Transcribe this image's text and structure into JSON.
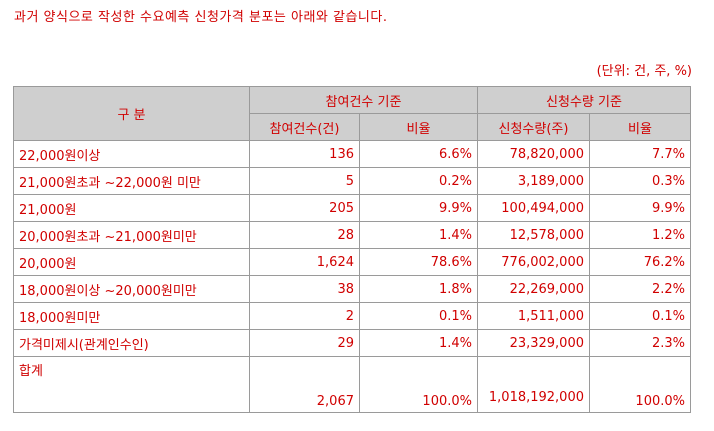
{
  "intro": "과거 양식으로 작성한 수요예측 신청가격 분포는 아래와 같습니다.",
  "unit": "(단위: 건, 주, %)",
  "header": {
    "category": "구 분",
    "group_count": "참여건수 기준",
    "group_qty": "신청수량 기준",
    "count_col": "참여건수(건)",
    "count_ratio": "비율",
    "qty_col": "신청수량(주)",
    "qty_ratio": "비율"
  },
  "rows": [
    {
      "label": "22,000원이상",
      "count": "136",
      "count_ratio": "6.6%",
      "qty": "78,820,000",
      "qty_ratio": "7.7%"
    },
    {
      "label": "21,000원초과 ~22,000원 미만",
      "count": "5",
      "count_ratio": "0.2%",
      "qty": "3,189,000",
      "qty_ratio": "0.3%"
    },
    {
      "label": "21,000원",
      "count": "205",
      "count_ratio": "9.9%",
      "qty": "100,494,000",
      "qty_ratio": "9.9%"
    },
    {
      "label": "20,000원초과 ~21,000원미만",
      "count": "28",
      "count_ratio": "1.4%",
      "qty": "12,578,000",
      "qty_ratio": "1.2%"
    },
    {
      "label": "20,000원",
      "count": "1,624",
      "count_ratio": "78.6%",
      "qty": "776,002,000",
      "qty_ratio": "76.2%"
    },
    {
      "label": "18,000원이상 ~20,000원미만",
      "count": "38",
      "count_ratio": "1.8%",
      "qty": "22,269,000",
      "qty_ratio": "2.2%"
    },
    {
      "label": "18,000원미만",
      "count": "2",
      "count_ratio": "0.1%",
      "qty": "1,511,000",
      "qty_ratio": "0.1%"
    },
    {
      "label": "가격미제시(관계인수인)",
      "count": "29",
      "count_ratio": "1.4%",
      "qty": "23,329,000",
      "qty_ratio": "2.3%"
    }
  ],
  "total": {
    "label": "합계",
    "count": "2,067",
    "count_ratio": "100.0%",
    "qty": "1,018,192,000",
    "qty_ratio": "100.0%"
  }
}
